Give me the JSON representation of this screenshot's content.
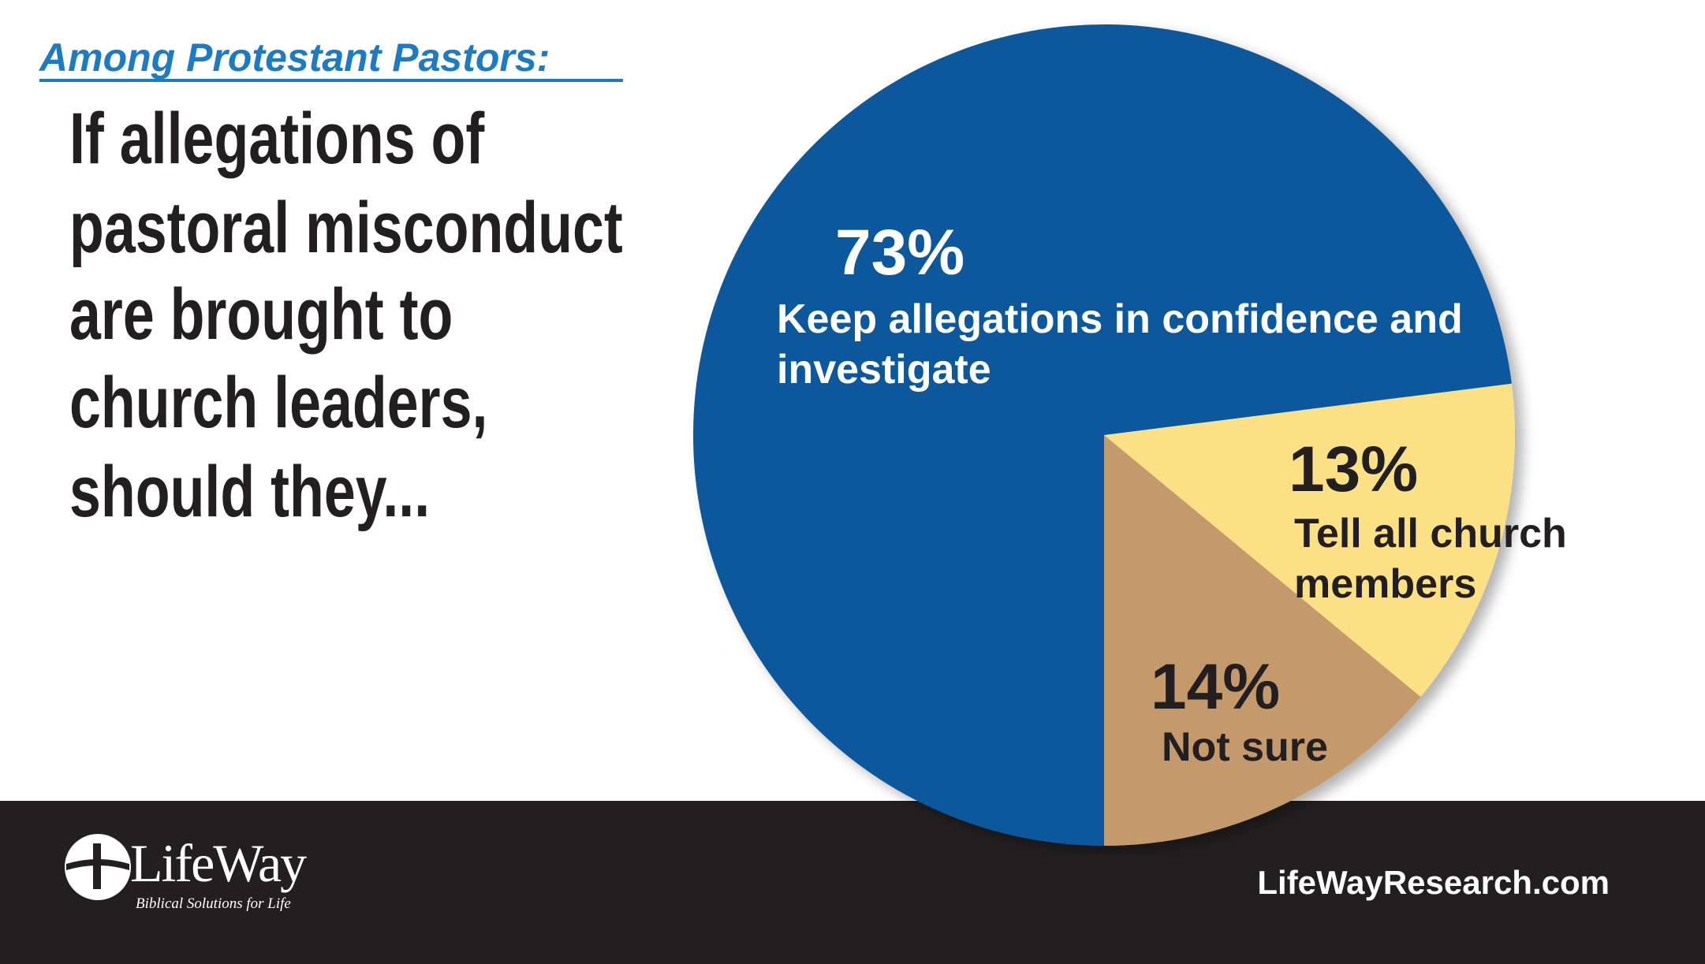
{
  "header": {
    "kicker": "Among Protestant Pastors:"
  },
  "chart_data": {
    "type": "pie",
    "title": [
      "If allegations of",
      "pastoral misconduct",
      "are brought to",
      "church leaders,",
      "should they..."
    ],
    "categories": [
      "Keep allegations in confidence and investigate",
      "Tell all church members",
      "Not sure"
    ],
    "values": [
      73,
      13,
      14
    ],
    "value_labels": [
      "73%",
      "13%",
      "14%"
    ],
    "colors": [
      "#0c589c",
      "#fbe085",
      "#c49a6c"
    ]
  },
  "footer": {
    "logo": "LifeWay",
    "tagline": "Biblical Solutions for Life",
    "website": "LifeWayResearch.com"
  }
}
